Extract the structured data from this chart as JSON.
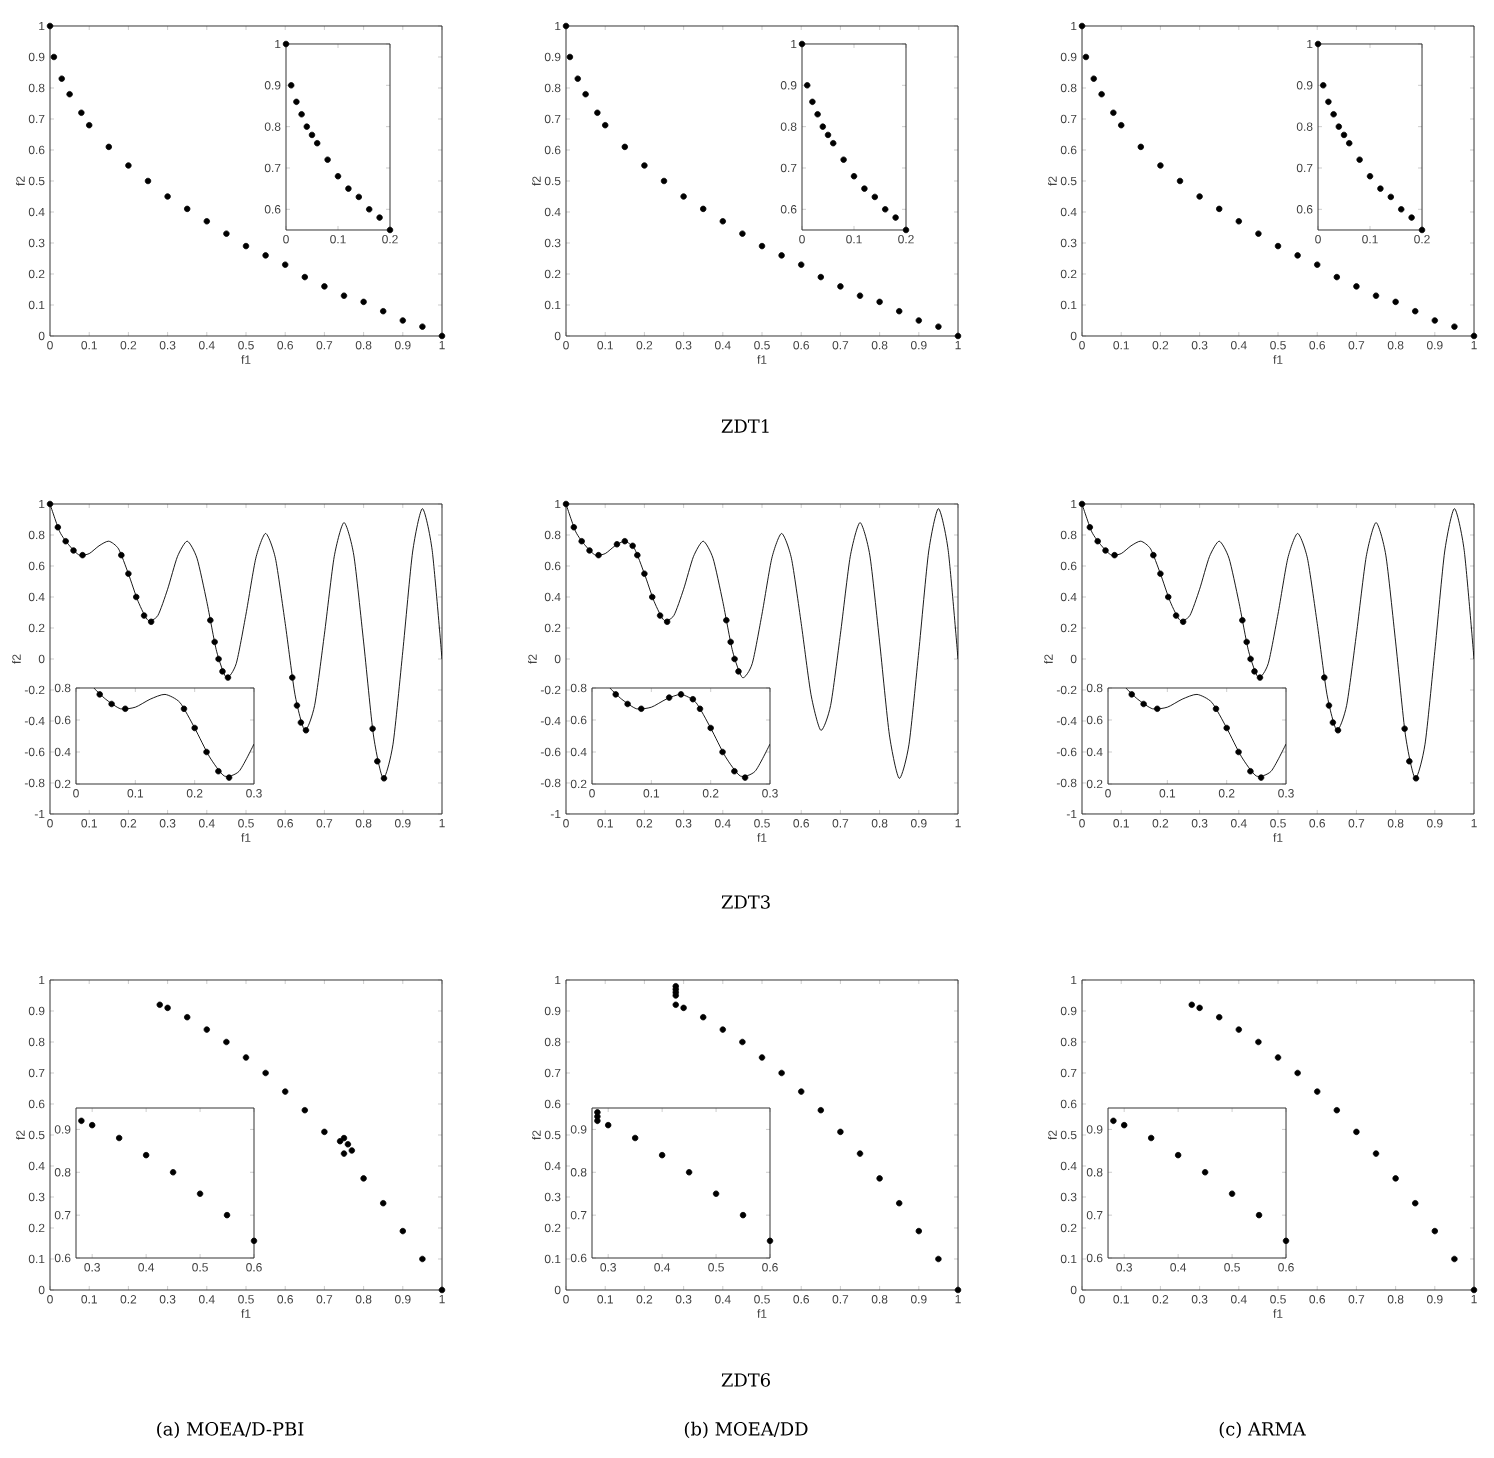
{
  "chart_data": [
    {
      "type": "scatter",
      "xlabel": "f1",
      "ylabel": "f2",
      "xlim": [
        0,
        1
      ],
      "ylim": [
        0,
        1
      ],
      "xticks": [
        0,
        0.1,
        0.2,
        0.3,
        0.4,
        0.5,
        0.6,
        0.7,
        0.8,
        0.9,
        1
      ],
      "yticks": [
        0,
        0.1,
        0.2,
        0.3,
        0.4,
        0.5,
        0.6,
        0.7,
        0.8,
        0.9,
        1
      ],
      "series": [
        {
          "marker": "circle",
          "color": "#000000",
          "x": [
            0,
            0.01,
            0.03,
            0.05,
            0.08,
            0.1,
            0.15,
            0.2,
            0.25,
            0.3,
            0.35,
            0.4,
            0.45,
            0.5,
            0.55,
            0.6,
            0.65,
            0.7,
            0.75,
            0.8,
            0.85,
            0.9,
            0.95,
            1
          ],
          "values": [
            1,
            0.9,
            0.83,
            0.78,
            0.72,
            0.68,
            0.61,
            0.55,
            0.5,
            0.45,
            0.41,
            0.37,
            0.33,
            0.29,
            0.26,
            0.23,
            0.19,
            0.16,
            0.13,
            0.11,
            0.08,
            0.05,
            0.03,
            0
          ]
        }
      ]
    },
    {
      "type": "scatter",
      "xlim": [
        0,
        0.2
      ],
      "ylim": [
        0.55,
        1
      ],
      "xticks": [
        0,
        0.1,
        0.2
      ],
      "yticks": [
        0.6,
        0.7,
        0.8,
        0.9,
        1
      ],
      "series": [
        {
          "marker": "circle",
          "color": "#000000",
          "x": [
            0,
            0.01,
            0.02,
            0.03,
            0.04,
            0.05,
            0.06,
            0.08,
            0.1,
            0.12,
            0.14,
            0.16,
            0.18,
            0.2
          ],
          "values": [
            1,
            0.9,
            0.86,
            0.83,
            0.8,
            0.78,
            0.76,
            0.72,
            0.68,
            0.65,
            0.63,
            0.6,
            0.58,
            0.55
          ]
        }
      ]
    },
    {
      "type": "scatter",
      "xlabel": "f1",
      "ylabel": "f2",
      "xlim": [
        0,
        1
      ],
      "ylim": [
        0,
        1
      ],
      "xticks": [
        0,
        0.1,
        0.2,
        0.3,
        0.4,
        0.5,
        0.6,
        0.7,
        0.8,
        0.9,
        1
      ],
      "yticks": [
        0,
        0.1,
        0.2,
        0.3,
        0.4,
        0.5,
        0.6,
        0.7,
        0.8,
        0.9,
        1
      ],
      "annotations": [
        "ZDT1"
      ],
      "series": [
        {
          "marker": "circle",
          "color": "#000000",
          "x": [
            0,
            0.01,
            0.03,
            0.05,
            0.08,
            0.1,
            0.15,
            0.2,
            0.25,
            0.3,
            0.35,
            0.4,
            0.45,
            0.5,
            0.55,
            0.6,
            0.65,
            0.7,
            0.75,
            0.8,
            0.85,
            0.9,
            0.95,
            1
          ],
          "values": [
            1,
            0.9,
            0.83,
            0.78,
            0.72,
            0.68,
            0.61,
            0.55,
            0.5,
            0.45,
            0.41,
            0.37,
            0.33,
            0.29,
            0.26,
            0.23,
            0.19,
            0.16,
            0.13,
            0.11,
            0.08,
            0.05,
            0.03,
            0
          ]
        }
      ]
    },
    {
      "type": "scatter",
      "xlim": [
        0,
        0.2
      ],
      "ylim": [
        0.55,
        1
      ],
      "xticks": [
        0,
        0.1,
        0.2
      ],
      "yticks": [
        0.6,
        0.7,
        0.8,
        0.9,
        1
      ],
      "series": [
        {
          "marker": "circle",
          "color": "#000000",
          "x": [
            0,
            0.01,
            0.02,
            0.03,
            0.04,
            0.05,
            0.06,
            0.08,
            0.1,
            0.12,
            0.14,
            0.16,
            0.18,
            0.2
          ],
          "values": [
            1,
            0.9,
            0.86,
            0.83,
            0.8,
            0.78,
            0.76,
            0.72,
            0.68,
            0.65,
            0.63,
            0.6,
            0.58,
            0.55
          ]
        }
      ]
    },
    {
      "type": "scatter",
      "xlabel": "f1",
      "ylabel": "f2",
      "xlim": [
        0,
        1
      ],
      "ylim": [
        0,
        1
      ],
      "xticks": [
        0,
        0.1,
        0.2,
        0.3,
        0.4,
        0.5,
        0.6,
        0.7,
        0.8,
        0.9,
        1
      ],
      "yticks": [
        0,
        0.1,
        0.2,
        0.3,
        0.4,
        0.5,
        0.6,
        0.7,
        0.8,
        0.9,
        1
      ],
      "series": [
        {
          "marker": "circle",
          "color": "#000000",
          "x": [
            0,
            0.01,
            0.03,
            0.05,
            0.08,
            0.1,
            0.15,
            0.2,
            0.25,
            0.3,
            0.35,
            0.4,
            0.45,
            0.5,
            0.55,
            0.6,
            0.65,
            0.7,
            0.75,
            0.8,
            0.85,
            0.9,
            0.95,
            1
          ],
          "values": [
            1,
            0.9,
            0.83,
            0.78,
            0.72,
            0.68,
            0.61,
            0.55,
            0.5,
            0.45,
            0.41,
            0.37,
            0.33,
            0.29,
            0.26,
            0.23,
            0.19,
            0.16,
            0.13,
            0.11,
            0.08,
            0.05,
            0.03,
            0
          ]
        }
      ]
    },
    {
      "type": "scatter",
      "xlim": [
        0,
        0.2
      ],
      "ylim": [
        0.55,
        1
      ],
      "xticks": [
        0,
        0.1,
        0.2
      ],
      "yticks": [
        0.6,
        0.7,
        0.8,
        0.9,
        1
      ],
      "series": [
        {
          "marker": "circle",
          "color": "#000000",
          "x": [
            0,
            0.01,
            0.02,
            0.03,
            0.04,
            0.05,
            0.06,
            0.08,
            0.1,
            0.12,
            0.14,
            0.16,
            0.18,
            0.2
          ],
          "values": [
            1,
            0.9,
            0.86,
            0.83,
            0.8,
            0.78,
            0.76,
            0.72,
            0.68,
            0.65,
            0.63,
            0.6,
            0.58,
            0.55
          ]
        }
      ]
    },
    {
      "type": "scatter",
      "xlabel": "f1",
      "ylabel": "f2",
      "xlim": [
        0,
        1
      ],
      "ylim": [
        -1,
        1
      ],
      "xticks": [
        0,
        0.1,
        0.2,
        0.3,
        0.4,
        0.5,
        0.6,
        0.7,
        0.8,
        0.9,
        1
      ],
      "yticks": [
        -1,
        -0.8,
        -0.6,
        -0.4,
        -0.2,
        0,
        0.2,
        0.4,
        0.6,
        0.8,
        1
      ],
      "series": [
        {
          "type": "line",
          "marker": "none",
          "color": "#000000",
          "x": [
            0,
            0.025,
            0.05,
            0.075,
            0.1,
            0.125,
            0.15,
            0.175,
            0.2,
            0.225,
            0.25,
            0.275,
            0.3,
            0.325,
            0.35,
            0.375,
            0.4,
            0.425,
            0.45,
            0.475,
            0.5,
            0.525,
            0.55,
            0.575,
            0.6,
            0.625,
            0.65,
            0.675,
            0.7,
            0.725,
            0.75,
            0.775,
            0.8,
            0.825,
            0.85,
            0.875,
            0.9,
            0.925,
            0.95,
            0.975,
            1
          ],
          "values": [
            1,
            0.82,
            0.73,
            0.67,
            0.68,
            0.73,
            0.76,
            0.71,
            0.55,
            0.37,
            0.25,
            0.28,
            0.45,
            0.66,
            0.76,
            0.65,
            0.37,
            0.05,
            -0.12,
            -0.03,
            0.29,
            0.65,
            0.81,
            0.65,
            0.23,
            -0.23,
            -0.46,
            -0.3,
            0.16,
            0.66,
            0.88,
            0.67,
            0.11,
            -0.49,
            -0.77,
            -0.55,
            0.05,
            0.69,
            0.97,
            0.7,
            0
          ]
        },
        {
          "marker": "circle",
          "color": "#000000",
          "x": [
            0,
            0.02,
            0.04,
            0.06,
            0.083,
            0.182,
            0.2,
            0.22,
            0.24,
            0.258,
            0.409,
            0.42,
            0.43,
            0.44,
            0.454,
            0.618,
            0.63,
            0.64,
            0.653,
            0.823,
            0.835,
            0.852
          ],
          "values": [
            1,
            0.85,
            0.76,
            0.7,
            0.67,
            0.67,
            0.55,
            0.4,
            0.28,
            0.24,
            0.25,
            0.11,
            0,
            -0.08,
            -0.12,
            -0.12,
            -0.3,
            -0.41,
            -0.46,
            -0.45,
            -0.66,
            -0.77
          ]
        }
      ]
    },
    {
      "type": "scatter",
      "xlim": [
        0,
        0.3
      ],
      "ylim": [
        0.2,
        0.8
      ],
      "xticks": [
        0,
        0.1,
        0.2,
        0.3
      ],
      "yticks": [
        0.2,
        0.4,
        0.6,
        0.8
      ],
      "series": [
        {
          "type": "line",
          "marker": "none",
          "color": "#000000",
          "x": [
            0.03,
            0.05,
            0.075,
            0.1,
            0.125,
            0.15,
            0.175,
            0.2,
            0.225,
            0.25,
            0.275,
            0.3
          ],
          "values": [
            0.8,
            0.73,
            0.67,
            0.68,
            0.73,
            0.76,
            0.71,
            0.55,
            0.37,
            0.25,
            0.28,
            0.45
          ]
        },
        {
          "marker": "circle",
          "color": "#000000",
          "x": [
            0.04,
            0.06,
            0.083,
            0.182,
            0.2,
            0.22,
            0.24,
            0.258
          ],
          "values": [
            0.76,
            0.7,
            0.67,
            0.67,
            0.55,
            0.4,
            0.28,
            0.24
          ]
        }
      ]
    },
    {
      "type": "scatter",
      "xlabel": "f1",
      "ylabel": "f2",
      "xlim": [
        0,
        1
      ],
      "ylim": [
        -1,
        1
      ],
      "xticks": [
        0,
        0.1,
        0.2,
        0.3,
        0.4,
        0.5,
        0.6,
        0.7,
        0.8,
        0.9,
        1
      ],
      "yticks": [
        -1,
        -0.8,
        -0.6,
        -0.4,
        -0.2,
        0,
        0.2,
        0.4,
        0.6,
        0.8,
        1
      ],
      "annotations": [
        "ZDT3"
      ],
      "series": [
        {
          "type": "line",
          "marker": "none",
          "color": "#000000",
          "x": [
            0,
            0.025,
            0.05,
            0.075,
            0.1,
            0.125,
            0.15,
            0.175,
            0.2,
            0.225,
            0.25,
            0.275,
            0.3,
            0.325,
            0.35,
            0.375,
            0.4,
            0.425,
            0.45,
            0.475,
            0.5,
            0.525,
            0.55,
            0.575,
            0.6,
            0.625,
            0.65,
            0.675,
            0.7,
            0.725,
            0.75,
            0.775,
            0.8,
            0.825,
            0.85,
            0.875,
            0.9,
            0.925,
            0.95,
            0.975,
            1
          ],
          "values": [
            1,
            0.82,
            0.73,
            0.67,
            0.68,
            0.73,
            0.76,
            0.71,
            0.55,
            0.37,
            0.25,
            0.28,
            0.45,
            0.66,
            0.76,
            0.65,
            0.37,
            0.05,
            -0.12,
            -0.03,
            0.29,
            0.65,
            0.81,
            0.65,
            0.23,
            -0.23,
            -0.46,
            -0.3,
            0.16,
            0.66,
            0.88,
            0.67,
            0.11,
            -0.49,
            -0.77,
            -0.55,
            0.05,
            0.69,
            0.97,
            0.7,
            0
          ]
        },
        {
          "marker": "circle",
          "color": "#000000",
          "x": [
            0,
            0.02,
            0.04,
            0.06,
            0.083,
            0.13,
            0.15,
            0.17,
            0.182,
            0.2,
            0.22,
            0.24,
            0.258,
            0.409,
            0.42,
            0.43,
            0.44
          ],
          "values": [
            1,
            0.85,
            0.76,
            0.7,
            0.67,
            0.74,
            0.76,
            0.73,
            0.67,
            0.55,
            0.4,
            0.28,
            0.24,
            0.25,
            0.11,
            0,
            -0.08
          ]
        }
      ]
    },
    {
      "type": "scatter",
      "xlim": [
        0,
        0.3
      ],
      "ylim": [
        0.2,
        0.8
      ],
      "xticks": [
        0,
        0.1,
        0.2,
        0.3
      ],
      "yticks": [
        0.2,
        0.4,
        0.6,
        0.8
      ],
      "series": [
        {
          "type": "line",
          "marker": "none",
          "color": "#000000",
          "x": [
            0.03,
            0.05,
            0.075,
            0.1,
            0.125,
            0.15,
            0.175,
            0.2,
            0.225,
            0.25,
            0.275,
            0.3
          ],
          "values": [
            0.8,
            0.73,
            0.67,
            0.68,
            0.73,
            0.76,
            0.71,
            0.55,
            0.37,
            0.25,
            0.28,
            0.45
          ]
        },
        {
          "marker": "circle",
          "color": "#000000",
          "x": [
            0.04,
            0.06,
            0.083,
            0.13,
            0.15,
            0.17,
            0.182,
            0.2,
            0.22,
            0.24,
            0.258
          ],
          "values": [
            0.76,
            0.7,
            0.67,
            0.74,
            0.76,
            0.73,
            0.67,
            0.55,
            0.4,
            0.28,
            0.24
          ]
        }
      ]
    },
    {
      "type": "scatter",
      "xlabel": "f1",
      "ylabel": "f2",
      "xlim": [
        0,
        1
      ],
      "ylim": [
        -1,
        1
      ],
      "xticks": [
        0,
        0.1,
        0.2,
        0.3,
        0.4,
        0.5,
        0.6,
        0.7,
        0.8,
        0.9,
        1
      ],
      "yticks": [
        -1,
        -0.8,
        -0.6,
        -0.4,
        -0.2,
        0,
        0.2,
        0.4,
        0.6,
        0.8,
        1
      ],
      "series": [
        {
          "type": "line",
          "marker": "none",
          "color": "#000000",
          "x": [
            0,
            0.025,
            0.05,
            0.075,
            0.1,
            0.125,
            0.15,
            0.175,
            0.2,
            0.225,
            0.25,
            0.275,
            0.3,
            0.325,
            0.35,
            0.375,
            0.4,
            0.425,
            0.45,
            0.475,
            0.5,
            0.525,
            0.55,
            0.575,
            0.6,
            0.625,
            0.65,
            0.675,
            0.7,
            0.725,
            0.75,
            0.775,
            0.8,
            0.825,
            0.85,
            0.875,
            0.9,
            0.925,
            0.95,
            0.975,
            1
          ],
          "values": [
            1,
            0.82,
            0.73,
            0.67,
            0.68,
            0.73,
            0.76,
            0.71,
            0.55,
            0.37,
            0.25,
            0.28,
            0.45,
            0.66,
            0.76,
            0.65,
            0.37,
            0.05,
            -0.12,
            -0.03,
            0.29,
            0.65,
            0.81,
            0.65,
            0.23,
            -0.23,
            -0.46,
            -0.3,
            0.16,
            0.66,
            0.88,
            0.67,
            0.11,
            -0.49,
            -0.77,
            -0.55,
            0.05,
            0.69,
            0.97,
            0.7,
            0
          ]
        },
        {
          "marker": "circle",
          "color": "#000000",
          "x": [
            0,
            0.02,
            0.04,
            0.06,
            0.083,
            0.182,
            0.2,
            0.22,
            0.24,
            0.258,
            0.409,
            0.42,
            0.43,
            0.44,
            0.454,
            0.618,
            0.63,
            0.64,
            0.653,
            0.823,
            0.835,
            0.852
          ],
          "values": [
            1,
            0.85,
            0.76,
            0.7,
            0.67,
            0.67,
            0.55,
            0.4,
            0.28,
            0.24,
            0.25,
            0.11,
            0,
            -0.08,
            -0.12,
            -0.12,
            -0.3,
            -0.41,
            -0.46,
            -0.45,
            -0.66,
            -0.77
          ]
        }
      ]
    },
    {
      "type": "scatter",
      "xlim": [
        0,
        0.3
      ],
      "ylim": [
        0.2,
        0.8
      ],
      "xticks": [
        0,
        0.1,
        0.2,
        0.3
      ],
      "yticks": [
        0.2,
        0.4,
        0.6,
        0.8
      ],
      "series": [
        {
          "type": "line",
          "marker": "none",
          "color": "#000000",
          "x": [
            0.03,
            0.05,
            0.075,
            0.1,
            0.125,
            0.15,
            0.175,
            0.2,
            0.225,
            0.25,
            0.275,
            0.3
          ],
          "values": [
            0.8,
            0.73,
            0.67,
            0.68,
            0.73,
            0.76,
            0.71,
            0.55,
            0.37,
            0.25,
            0.28,
            0.45
          ]
        },
        {
          "marker": "circle",
          "color": "#000000",
          "x": [
            0.04,
            0.06,
            0.083,
            0.182,
            0.2,
            0.22,
            0.24,
            0.258
          ],
          "values": [
            0.76,
            0.7,
            0.67,
            0.67,
            0.55,
            0.4,
            0.28,
            0.24
          ]
        }
      ]
    },
    {
      "type": "scatter",
      "xlabel": "f1",
      "ylabel": "f2",
      "xlim": [
        0,
        1
      ],
      "ylim": [
        0,
        1
      ],
      "xticks": [
        0,
        0.1,
        0.2,
        0.3,
        0.4,
        0.5,
        0.6,
        0.7,
        0.8,
        0.9,
        1
      ],
      "yticks": [
        0,
        0.1,
        0.2,
        0.3,
        0.4,
        0.5,
        0.6,
        0.7,
        0.8,
        0.9,
        1
      ],
      "annotations": [
        "(a) MOEA/D-PBI"
      ],
      "series": [
        {
          "marker": "circle",
          "color": "#000000",
          "x": [
            0.28,
            0.3,
            0.35,
            0.4,
            0.45,
            0.5,
            0.55,
            0.6,
            0.65,
            0.7,
            0.75,
            0.8,
            0.85,
            0.9,
            0.95,
            1,
            0.74,
            0.75,
            0.76,
            0.77
          ],
          "values": [
            0.92,
            0.91,
            0.88,
            0.84,
            0.8,
            0.75,
            0.7,
            0.64,
            0.58,
            0.51,
            0.44,
            0.36,
            0.28,
            0.19,
            0.1,
            0,
            0.48,
            0.49,
            0.47,
            0.45
          ]
        }
      ]
    },
    {
      "type": "scatter",
      "xlim": [
        0.27,
        0.6
      ],
      "ylim": [
        0.6,
        0.95
      ],
      "xticks": [
        0.3,
        0.4,
        0.5,
        0.6
      ],
      "yticks": [
        0.6,
        0.7,
        0.8,
        0.9
      ],
      "series": [
        {
          "marker": "circle",
          "color": "#000000",
          "x": [
            0.28,
            0.3,
            0.35,
            0.4,
            0.45,
            0.5,
            0.55,
            0.6
          ],
          "values": [
            0.92,
            0.91,
            0.88,
            0.84,
            0.8,
            0.75,
            0.7,
            0.64
          ]
        }
      ]
    },
    {
      "type": "scatter",
      "xlabel": "f1",
      "ylabel": "f2",
      "xlim": [
        0,
        1
      ],
      "ylim": [
        0,
        1
      ],
      "xticks": [
        0,
        0.1,
        0.2,
        0.3,
        0.4,
        0.5,
        0.6,
        0.7,
        0.8,
        0.9,
        1
      ],
      "yticks": [
        0,
        0.1,
        0.2,
        0.3,
        0.4,
        0.5,
        0.6,
        0.7,
        0.8,
        0.9,
        1
      ],
      "annotations": [
        "ZDT6",
        "(b) MOEA/DD"
      ],
      "series": [
        {
          "marker": "circle",
          "color": "#000000",
          "x": [
            0.28,
            0.3,
            0.35,
            0.4,
            0.45,
            0.5,
            0.55,
            0.6,
            0.65,
            0.7,
            0.75,
            0.8,
            0.85,
            0.9,
            0.95,
            1,
            0.28,
            0.28,
            0.28,
            0.28
          ],
          "values": [
            0.92,
            0.91,
            0.88,
            0.84,
            0.8,
            0.75,
            0.7,
            0.64,
            0.58,
            0.51,
            0.44,
            0.36,
            0.28,
            0.19,
            0.1,
            0,
            0.95,
            0.96,
            0.97,
            0.98
          ]
        }
      ]
    },
    {
      "type": "scatter",
      "xlim": [
        0.27,
        0.6
      ],
      "ylim": [
        0.6,
        0.95
      ],
      "xticks": [
        0.3,
        0.4,
        0.5,
        0.6
      ],
      "yticks": [
        0.6,
        0.7,
        0.8,
        0.9
      ],
      "series": [
        {
          "marker": "circle",
          "color": "#000000",
          "x": [
            0.28,
            0.3,
            0.35,
            0.4,
            0.45,
            0.5,
            0.55,
            0.6,
            0.28,
            0.28
          ],
          "values": [
            0.92,
            0.91,
            0.88,
            0.84,
            0.8,
            0.75,
            0.7,
            0.64,
            0.93,
            0.94
          ]
        }
      ]
    },
    {
      "type": "scatter",
      "xlabel": "f1",
      "ylabel": "f2",
      "xlim": [
        0,
        1
      ],
      "ylim": [
        0,
        1
      ],
      "xticks": [
        0,
        0.1,
        0.2,
        0.3,
        0.4,
        0.5,
        0.6,
        0.7,
        0.8,
        0.9,
        1
      ],
      "yticks": [
        0,
        0.1,
        0.2,
        0.3,
        0.4,
        0.5,
        0.6,
        0.7,
        0.8,
        0.9,
        1
      ],
      "annotations": [
        "(c) ARMA"
      ],
      "series": [
        {
          "marker": "circle",
          "color": "#000000",
          "x": [
            0.28,
            0.3,
            0.35,
            0.4,
            0.45,
            0.5,
            0.55,
            0.6,
            0.65,
            0.7,
            0.75,
            0.8,
            0.85,
            0.9,
            0.95,
            1
          ],
          "values": [
            0.92,
            0.91,
            0.88,
            0.84,
            0.8,
            0.75,
            0.7,
            0.64,
            0.58,
            0.51,
            0.44,
            0.36,
            0.28,
            0.19,
            0.1,
            0
          ]
        }
      ]
    },
    {
      "type": "scatter",
      "xlim": [
        0.27,
        0.6
      ],
      "ylim": [
        0.6,
        0.95
      ],
      "xticks": [
        0.3,
        0.4,
        0.5,
        0.6
      ],
      "yticks": [
        0.6,
        0.7,
        0.8,
        0.9
      ],
      "series": [
        {
          "marker": "circle",
          "color": "#000000",
          "x": [
            0.28,
            0.3,
            0.35,
            0.4,
            0.45,
            0.5,
            0.55,
            0.6
          ],
          "values": [
            0.92,
            0.91,
            0.88,
            0.84,
            0.8,
            0.75,
            0.7,
            0.64
          ]
        }
      ]
    }
  ]
}
